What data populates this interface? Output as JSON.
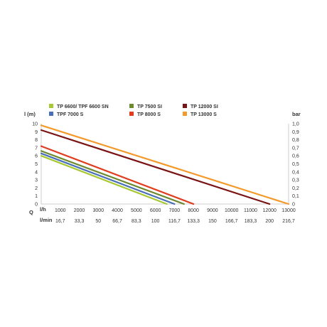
{
  "chart_data": {
    "type": "line",
    "ylabel": "l (m)",
    "y2label": "bar",
    "x_row_label": "Q",
    "x_unit_lh": "l/h",
    "x_unit_lmin": "l/min",
    "xlim": [
      0,
      13000
    ],
    "ylim": [
      0,
      10
    ],
    "y2lim": [
      0,
      1.0
    ],
    "grid": false,
    "legend_position": "top",
    "x_ticks_lh": [
      "1000",
      "2000",
      "3000",
      "4000",
      "5000",
      "6000",
      "7000",
      "8000",
      "9000",
      "10000",
      "11000",
      "12000",
      "13000"
    ],
    "x_ticks_lmin": [
      "16,7",
      "33,3",
      "50",
      "66,7",
      "83,3",
      "100",
      "116,7",
      "133,3",
      "150",
      "166,7",
      "183,3",
      "200",
      "216,7"
    ],
    "y_ticks": [
      "0",
      "1",
      "2",
      "3",
      "4",
      "5",
      "6",
      "7",
      "8",
      "9",
      "10"
    ],
    "y2_ticks": [
      "0",
      "0,1",
      "0,2",
      "0,3",
      "0,4",
      "0,5",
      "0,6",
      "0,7",
      "0,8",
      "0,9",
      "1,0"
    ],
    "series": [
      {
        "name": "TP 6600/ TPF 6600 SN",
        "color": "#a8c832",
        "x": [
          0,
          6600
        ],
        "y": [
          6.0,
          0
        ]
      },
      {
        "name": "TPF 7000 S",
        "color": "#4a6fb8",
        "x": [
          0,
          7000
        ],
        "y": [
          6.3,
          0
        ]
      },
      {
        "name": "TP 7500 SI",
        "color": "#6e8a2e",
        "x": [
          0,
          7500
        ],
        "y": [
          6.6,
          0
        ]
      },
      {
        "name": "TP 8000 S",
        "color": "#e03c1e",
        "x": [
          0,
          8000
        ],
        "y": [
          7.2,
          0
        ]
      },
      {
        "name": "TP 12000 SI",
        "color": "#7a1414",
        "x": [
          0,
          12000
        ],
        "y": [
          9.2,
          0
        ]
      },
      {
        "name": "TP 13000 S",
        "color": "#f39a2a",
        "x": [
          0,
          13000
        ],
        "y": [
          9.8,
          0
        ]
      }
    ]
  }
}
